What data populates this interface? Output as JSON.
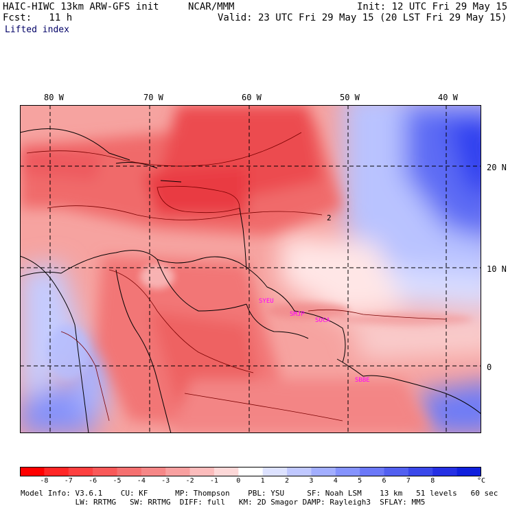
{
  "header": {
    "model_title": "HAIC-HIWC 13km ARW-GFS init",
    "org": "NCAR/MMM",
    "init_label": "Init: 12 UTC Fri 29 May 15",
    "forecast_label": "Fcst:   11 h",
    "valid_label": "Valid: 23 UTC Fri 29 May 15 (20 LST Fri 29 May 15)",
    "field_name": "Lifted index"
  },
  "map": {
    "lon_labels": [
      "80 W",
      "70 W",
      "60 W",
      "50 W",
      "40 W"
    ],
    "lat_labels": [
      "20 N",
      "10 N",
      "0"
    ],
    "stations": [
      "SYEU",
      "SMJP",
      "SOCA",
      "SBBE"
    ],
    "contour_label": "2",
    "colors": {
      "strong_unstable": "#e8262f",
      "unstable": "#f46f6f",
      "weak_unstable": "#fbb4b0",
      "neutral": "#ffffff",
      "stable": "#9fb0ff",
      "strong_stable": "#2a3bf0",
      "coast": "#000000",
      "contour": "#7a0000",
      "station": "#ff00ff"
    }
  },
  "colorbar": {
    "ticks": [
      "-8",
      "-7",
      "-6",
      "-5",
      "-4",
      "-3",
      "-2",
      "-1",
      "0",
      "1",
      "2",
      "3",
      "4",
      "5",
      "6",
      "7",
      "8"
    ],
    "unit": "°C",
    "colors": [
      "#ff0000",
      "#ff2626",
      "#fd4040",
      "#f95959",
      "#f57070",
      "#f68787",
      "#f8a0a0",
      "#fcbcbc",
      "#fdd8d8",
      "#ffffff",
      "#dde2ff",
      "#c0c8ff",
      "#a2aeff",
      "#8593fd",
      "#6b78f8",
      "#5260f0",
      "#3a48ea",
      "#2530e4",
      "#1020dd"
    ]
  },
  "footer": {
    "line1": "Model Info: V3.6.1    CU: KF      MP: Thompson    PBL: YSU     SF: Noah LSM    13 km   51 levels   60 sec",
    "line2": "            LW: RRTMG   SW: RRTMG  DIFF: full   KM: 2D Smagor DAMP: Rayleigh3  SFLAY: MM5"
  }
}
